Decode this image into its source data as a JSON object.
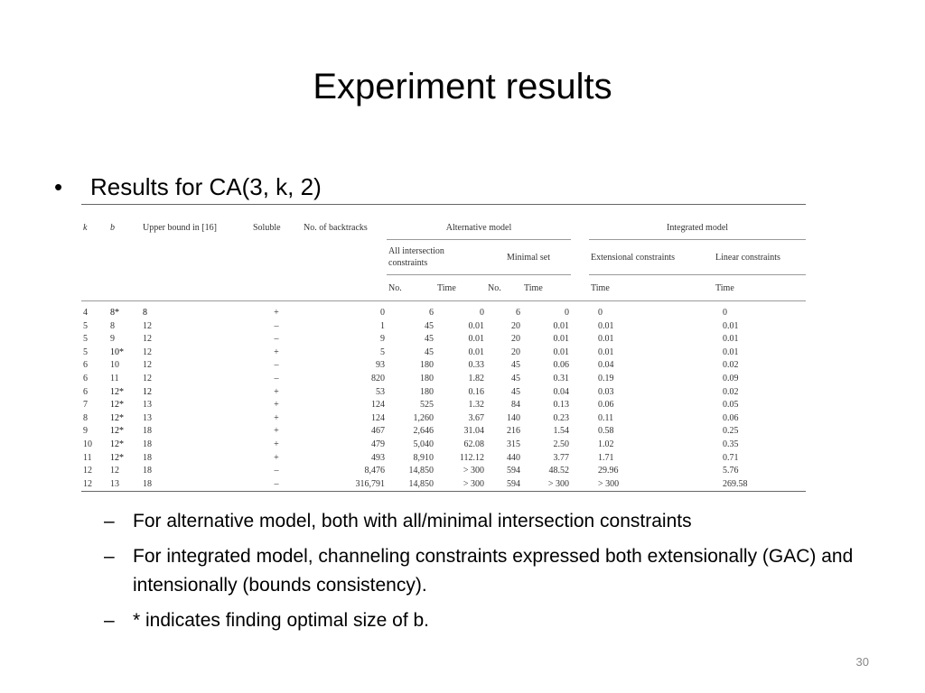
{
  "slide": {
    "title": "Experiment results",
    "bullet": "Results for CA(3, k, 2)",
    "bullet_symbol": "•",
    "sub_bullets": [
      "For alternative model, both with all/minimal intersection constraints",
      "For integrated model, channeling constraints expressed both extensionally (GAC) and intensionally (bounds consistency).",
      "* indicates finding optimal size of b."
    ],
    "sub_bullet_symbol": "–",
    "page_number": "30"
  },
  "table": {
    "headers": {
      "k": "k",
      "b": "b",
      "upper_bound": "Upper bound in [16]",
      "soluble": "Soluble",
      "backtracks": "No. of backtracks",
      "alternative_model": "Alternative model",
      "integrated_model": "Integrated model",
      "all_intersection": "All intersection constraints",
      "minimal_set": "Minimal set",
      "extensional": "Extensional constraints",
      "linear": "Linear constraints",
      "no": "No.",
      "time": "Time"
    },
    "rows": [
      {
        "k": "4",
        "b": "8*",
        "ub": "8",
        "sol": "+",
        "bt": "0",
        "all_no": "6",
        "all_time": "0",
        "min_no": "6",
        "min_time": "0",
        "ext_time": "0",
        "lin_time": "0",
        "bold_b": true,
        "bold_ub": true
      },
      {
        "k": "5",
        "b": "8",
        "ub": "12",
        "sol": "–",
        "bt": "1",
        "all_no": "45",
        "all_time": "0.01",
        "min_no": "20",
        "min_time": "0.01",
        "ext_time": "0.01",
        "lin_time": "0.01"
      },
      {
        "k": "5",
        "b": "9",
        "ub": "12",
        "sol": "–",
        "bt": "9",
        "all_no": "45",
        "all_time": "0.01",
        "min_no": "20",
        "min_time": "0.01",
        "ext_time": "0.01",
        "lin_time": "0.01"
      },
      {
        "k": "5",
        "b": "10*",
        "ub": "12",
        "sol": "+",
        "bt": "5",
        "all_no": "45",
        "all_time": "0.01",
        "min_no": "20",
        "min_time": "0.01",
        "ext_time": "0.01",
        "lin_time": "0.01",
        "bold_b": true
      },
      {
        "k": "6",
        "b": "10",
        "ub": "12",
        "sol": "–",
        "bt": "93",
        "all_no": "180",
        "all_time": "0.33",
        "min_no": "45",
        "min_time": "0.06",
        "ext_time": "0.04",
        "lin_time": "0.02"
      },
      {
        "k": "6",
        "b": "11",
        "ub": "12",
        "sol": "–",
        "bt": "820",
        "all_no": "180",
        "all_time": "1.82",
        "min_no": "45",
        "min_time": "0.31",
        "ext_time": "0.19",
        "lin_time": "0.09"
      },
      {
        "k": "6",
        "b": "12*",
        "ub": "12",
        "sol": "+",
        "bt": "53",
        "all_no": "180",
        "all_time": "0.16",
        "min_no": "45",
        "min_time": "0.04",
        "ext_time": "0.03",
        "lin_time": "0.02",
        "bold_b": true,
        "bold_ub": true
      },
      {
        "k": "7",
        "b": "12*",
        "ub": "13",
        "sol": "+",
        "bt": "124",
        "all_no": "525",
        "all_time": "1.32",
        "min_no": "84",
        "min_time": "0.13",
        "ext_time": "0.06",
        "lin_time": "0.05",
        "bold_b": true
      },
      {
        "k": "8",
        "b": "12*",
        "ub": "13",
        "sol": "+",
        "bt": "124",
        "all_no": "1,260",
        "all_time": "3.67",
        "min_no": "140",
        "min_time": "0.23",
        "ext_time": "0.11",
        "lin_time": "0.06",
        "bold_b": true
      },
      {
        "k": "9",
        "b": "12*",
        "ub": "18",
        "sol": "+",
        "bt": "467",
        "all_no": "2,646",
        "all_time": "31.04",
        "min_no": "216",
        "min_time": "1.54",
        "ext_time": "0.58",
        "lin_time": "0.25",
        "bold_b": true
      },
      {
        "k": "10",
        "b": "12*",
        "ub": "18",
        "sol": "+",
        "bt": "479",
        "all_no": "5,040",
        "all_time": "62.08",
        "min_no": "315",
        "min_time": "2.50",
        "ext_time": "1.02",
        "lin_time": "0.35",
        "bold_b": true
      },
      {
        "k": "11",
        "b": "12*",
        "ub": "18",
        "sol": "+",
        "bt": "493",
        "all_no": "8,910",
        "all_time": "112.12",
        "min_no": "440",
        "min_time": "3.77",
        "ext_time": "1.71",
        "lin_time": "0.71",
        "bold_b": true
      },
      {
        "k": "12",
        "b": "12",
        "ub": "18",
        "sol": "–",
        "bt": "8,476",
        "all_no": "14,850",
        "all_time": "> 300",
        "min_no": "594",
        "min_time": "48.52",
        "ext_time": "29.96",
        "lin_time": "5.76"
      },
      {
        "k": "12",
        "b": "13",
        "ub": "18",
        "sol": "–",
        "bt": "316,791",
        "all_no": "14,850",
        "all_time": "> 300",
        "min_no": "594",
        "min_time": "> 300",
        "ext_time": "> 300",
        "lin_time": "269.58"
      }
    ]
  }
}
